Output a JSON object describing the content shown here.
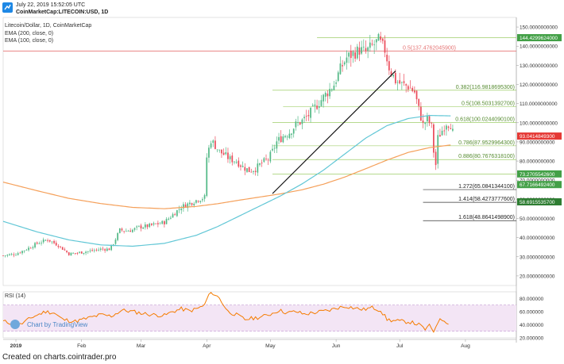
{
  "header": {
    "date": "July 22, 2019 15:52:05 UTC",
    "symbol": "CoinMarketCap:LITECOIN:USD, 1D"
  },
  "legend": {
    "title": "Litecoin/Dollar, 1D, CoinMarketCap",
    "ema200": "EMA (200, close, 0)",
    "ema100": "EMA (100, close, 0)"
  },
  "watermark": "Chart by TradingView",
  "footer": "Created on charts.cointrader.pro",
  "colors": {
    "up": "#53b987",
    "down": "#eb4d5c",
    "ema200": "#f5a05a",
    "ema100": "#62c7d6",
    "fib": "#8bc34a",
    "resistance": "#e57373",
    "rsi": "#f57c00",
    "rsi_band": "#f3e5f5",
    "trendline": "#111111",
    "price_tag": "#e53935",
    "fib_tag": "#43a047",
    "ext_tag": "#2e7d32"
  },
  "chart_data": [
    {
      "type": "candlestick",
      "ylim": [
        15,
        155
      ],
      "yticks": [
        "150.0000000000",
        "140.0000000000",
        "130.0000000000",
        "120.0000000000",
        "110.0000000000",
        "100.0000000000",
        "90.0000000000",
        "80.0000000000",
        "70.0000000000",
        "60.0000000000",
        "50.0000000000",
        "40.0000000000",
        "30.0000000000",
        "20.0000000000"
      ],
      "ytick_values": [
        150,
        140,
        130,
        120,
        110,
        100,
        90,
        80,
        70,
        60,
        50,
        40,
        30,
        20
      ],
      "x_range_days": [
        -6,
        236
      ],
      "xticks": [
        {
          "label": "2019",
          "day": 0
        },
        {
          "label": "Feb",
          "day": 31
        },
        {
          "label": "Mar",
          "day": 59
        },
        {
          "label": "Apr",
          "day": 90
        },
        {
          "label": "May",
          "day": 120
        },
        {
          "label": "Jun",
          "day": 151
        },
        {
          "label": "Jul",
          "day": 181
        },
        {
          "label": "Aug",
          "day": 212
        }
      ],
      "close_anchors": [
        [
          -6,
          30.6
        ],
        [
          0,
          31.5
        ],
        [
          5,
          34
        ],
        [
          10,
          37
        ],
        [
          15,
          39
        ],
        [
          20,
          36
        ],
        [
          25,
          31.5
        ],
        [
          30,
          32.2
        ],
        [
          35,
          33
        ],
        [
          40,
          34
        ],
        [
          44,
          34
        ],
        [
          46,
          37
        ],
        [
          49,
          44
        ],
        [
          52,
          43.5
        ],
        [
          55,
          44
        ],
        [
          58,
          45.5
        ],
        [
          62,
          46
        ],
        [
          66,
          47
        ],
        [
          70,
          48
        ],
        [
          74,
          52
        ],
        [
          78,
          56
        ],
        [
          82,
          58
        ],
        [
          86,
          60
        ],
        [
          89,
          61
        ],
        [
          90,
          82
        ],
        [
          92,
          91
        ],
        [
          94,
          88
        ],
        [
          96,
          85
        ],
        [
          98,
          83.5
        ],
        [
          101,
          81
        ],
        [
          104,
          80
        ],
        [
          107,
          77
        ],
        [
          110,
          75
        ],
        [
          113,
          76
        ],
        [
          116,
          79
        ],
        [
          119,
          81
        ],
        [
          121,
          85
        ],
        [
          123,
          90
        ],
        [
          126,
          93
        ],
        [
          129,
          95
        ],
        [
          132,
          99
        ],
        [
          135,
          101
        ],
        [
          138,
          104
        ],
        [
          141,
          108
        ],
        [
          144,
          112
        ],
        [
          147,
          116
        ],
        [
          150,
          120
        ],
        [
          153,
          128
        ],
        [
          156,
          134
        ],
        [
          159,
          136
        ],
        [
          162,
          138
        ],
        [
          165,
          137
        ],
        [
          168,
          140
        ],
        [
          171,
          143
        ],
        [
          174,
          138
        ],
        [
          176,
          129
        ],
        [
          179,
          122
        ],
        [
          182,
          120
        ],
        [
          185,
          119
        ],
        [
          188,
          116
        ],
        [
          190,
          107
        ],
        [
          192,
          99
        ],
        [
          194,
          102
        ],
        [
          196,
          98
        ],
        [
          197,
          85
        ],
        [
          198,
          78
        ],
        [
          199,
          92
        ],
        [
          201,
          96
        ],
        [
          203,
          100
        ],
        [
          205,
          99
        ],
        [
          206,
          95
        ]
      ],
      "ema200_anchors": [
        [
          -6,
          69
        ],
        [
          10,
          64.5
        ],
        [
          25,
          60.5
        ],
        [
          40,
          57.8
        ],
        [
          55,
          55.8
        ],
        [
          70,
          55.1
        ],
        [
          85,
          56.3
        ],
        [
          95,
          57.7
        ],
        [
          105,
          59.5
        ],
        [
          115,
          61.2
        ],
        [
          125,
          62.9
        ],
        [
          135,
          65
        ],
        [
          145,
          67.9
        ],
        [
          155,
          71.6
        ],
        [
          165,
          76
        ],
        [
          175,
          80.5
        ],
        [
          185,
          84.5
        ],
        [
          195,
          87
        ],
        [
          205,
          88.4
        ]
      ],
      "ema100_anchors": [
        [
          -6,
          48.5
        ],
        [
          10,
          43
        ],
        [
          25,
          38.8
        ],
        [
          40,
          36.2
        ],
        [
          55,
          35.5
        ],
        [
          70,
          37
        ],
        [
          85,
          41.2
        ],
        [
          95,
          45.7
        ],
        [
          105,
          51.1
        ],
        [
          115,
          56.5
        ],
        [
          125,
          61.9
        ],
        [
          135,
          68.1
        ],
        [
          145,
          75.2
        ],
        [
          155,
          83.6
        ],
        [
          165,
          92
        ],
        [
          175,
          98.5
        ],
        [
          185,
          102.2
        ],
        [
          195,
          103.8
        ],
        [
          205,
          103.6
        ]
      ],
      "resistance": {
        "value": 137.47620459,
        "label": "0.5(137.4762045900)"
      },
      "trendline": {
        "start": [
          121,
          63
        ],
        "end": [
          179,
          127
        ]
      },
      "high_ref": {
        "value": 144.4299624,
        "from_day": 142
      },
      "fib_levels": [
        {
          "value": 116.98186953,
          "label": "0.382(116.9818695300)",
          "from_day": 121
        },
        {
          "value": 108.50313927,
          "label": "0.5(108.5031392700)",
          "from_day": 126
        },
        {
          "value": 100.02440901,
          "label": "0.618(100.0244090100)",
          "from_day": 121
        },
        {
          "value": 87.95299643,
          "label": "0.786(87.9529964300)",
          "from_day": 121
        },
        {
          "value": 80.76763181,
          "label": "0.886(80.7676318100)",
          "from_day": 121
        },
        {
          "value": 73.27055426,
          "label": "",
          "from_day": 121
        }
      ],
      "extensions": [
        {
          "value": 65.08413441,
          "label": "1.272(65.0841344100)",
          "from_day": 192
        },
        {
          "value": 58.42737776,
          "label": "1.414(58.4273777600)",
          "from_day": 192
        },
        {
          "value": 48.86414989,
          "label": "1.618(48.8641498900)",
          "from_day": 192
        }
      ],
      "price_tags": [
        {
          "value": 144.4299624,
          "label": "144.4299624000",
          "kind": "fib"
        },
        {
          "value": 93.04148493,
          "label": "93.0414849300",
          "kind": "price"
        },
        {
          "value": 73.27055426,
          "label": "73.2705542600",
          "kind": "fib"
        },
        {
          "value": 67.71664924,
          "label": "67.7166492400",
          "kind": "fib"
        },
        {
          "value": 58.69155357,
          "label": "58.6915535700",
          "kind": "ext"
        }
      ]
    },
    {
      "type": "line",
      "title": "RSI (14)",
      "ylim": [
        20,
        90
      ],
      "yticks": [
        "80.000000",
        "60.000000",
        "40.000000",
        "20.000000"
      ],
      "ytick_values": [
        80,
        60,
        40,
        20
      ],
      "band": [
        30,
        70
      ],
      "series": [
        {
          "values_anchors": [
            [
              -6,
              45
            ],
            [
              2,
              40
            ],
            [
              8,
              52
            ],
            [
              14,
              60
            ],
            [
              18,
              58
            ],
            [
              22,
              48
            ],
            [
              28,
              45
            ],
            [
              34,
              50
            ],
            [
              40,
              55
            ],
            [
              45,
              53
            ],
            [
              50,
              62
            ],
            [
              55,
              60
            ],
            [
              60,
              57
            ],
            [
              65,
              55
            ],
            [
              70,
              54
            ],
            [
              74,
              60
            ],
            [
              78,
              64
            ],
            [
              82,
              61
            ],
            [
              86,
              65
            ],
            [
              89,
              70
            ],
            [
              91,
              86
            ],
            [
              93,
              88
            ],
            [
              96,
              80
            ],
            [
              100,
              60
            ],
            [
              104,
              55
            ],
            [
              108,
              48
            ],
            [
              112,
              50
            ],
            [
              116,
              52
            ],
            [
              120,
              56
            ],
            [
              124,
              62
            ],
            [
              128,
              58
            ],
            [
              132,
              60
            ],
            [
              136,
              56
            ],
            [
              140,
              58
            ],
            [
              144,
              60
            ],
            [
              148,
              62
            ],
            [
              152,
              66
            ],
            [
              156,
              68
            ],
            [
              160,
              65
            ],
            [
              164,
              63
            ],
            [
              168,
              66
            ],
            [
              172,
              62
            ],
            [
              175,
              48
            ],
            [
              178,
              46
            ],
            [
              182,
              45
            ],
            [
              186,
              44
            ],
            [
              190,
              40
            ],
            [
              193,
              33
            ],
            [
              195,
              38
            ],
            [
              197,
              30
            ],
            [
              199,
              45
            ],
            [
              201,
              48
            ],
            [
              204,
              43
            ]
          ]
        }
      ]
    }
  ]
}
